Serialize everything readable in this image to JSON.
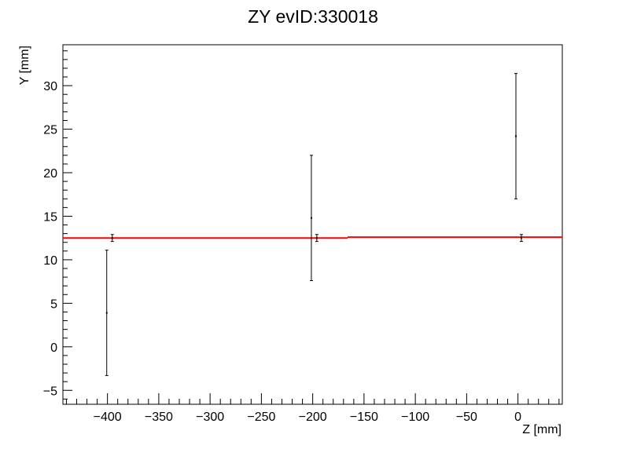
{
  "chart_data": {
    "type": "scatter",
    "title": "ZY evID:330018",
    "xlabel": "Z [mm]",
    "ylabel": "Y [mm]",
    "xlim": [
      -443.4,
      43.2
    ],
    "ylim": [
      -6.6,
      34.7
    ],
    "grid": false,
    "xticks": [
      -400,
      -350,
      -300,
      -250,
      -200,
      -150,
      -100,
      -50,
      0
    ],
    "yticks": [
      -5,
      0,
      5,
      10,
      15,
      20,
      25,
      30
    ],
    "points": [
      {
        "x": -400.7,
        "y": 3.9,
        "yerr": 7.2
      },
      {
        "x": -395.3,
        "y": 12.5,
        "yerr": 0.4
      },
      {
        "x": -201.3,
        "y": 14.8,
        "yerr": 7.2
      },
      {
        "x": -196.0,
        "y": 12.5,
        "yerr": 0.4
      },
      {
        "x": -2.0,
        "y": 24.2,
        "yerr": 7.2
      },
      {
        "x": 3.3,
        "y": 12.5,
        "yerr": 0.4
      }
    ],
    "fit_line": {
      "color": "#ff0000",
      "segments": [
        {
          "x": [
            -443.4,
            -166.0
          ],
          "y": [
            12.5,
            12.5
          ]
        },
        {
          "x": [
            -166.0,
            43.2
          ],
          "y": [
            12.6,
            12.6
          ]
        }
      ]
    }
  }
}
